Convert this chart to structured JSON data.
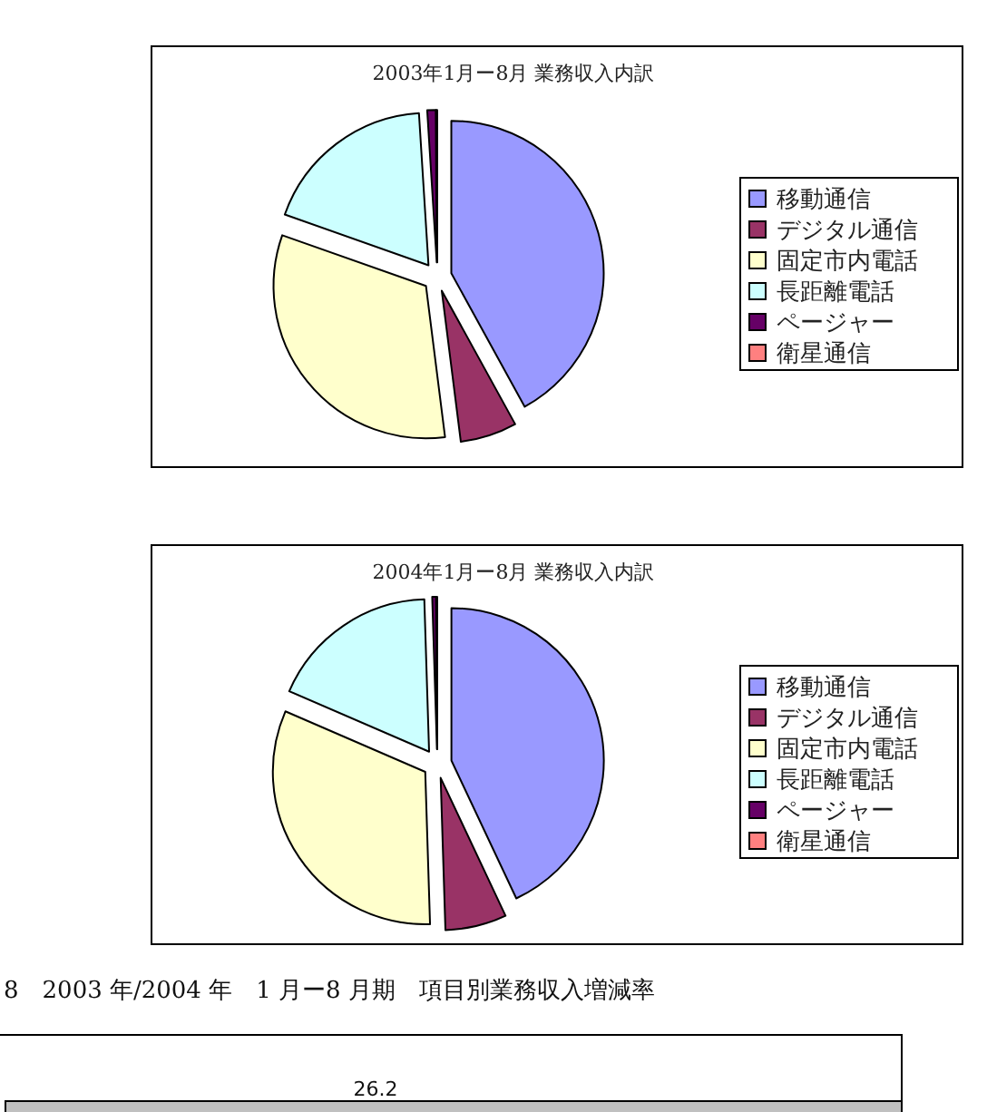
{
  "chart_data": [
    {
      "type": "pie",
      "title": "2003年1月ー8月 業務収入内訳",
      "categories": [
        "移動通信",
        "デジタル通信",
        "固定市内電話",
        "長距離電話",
        "ページャー",
        "衛星通信"
      ],
      "values": [
        42,
        6,
        32.4,
        18.6,
        0.9,
        0.1
      ],
      "colors": [
        "#9999ff",
        "#993366",
        "#ffffcc",
        "#ccffff",
        "#660066",
        "#ff8080"
      ],
      "legend": "right"
    },
    {
      "type": "pie",
      "title": "2004年1月ー8月 業務収入内訳",
      "categories": [
        "移動通信",
        "デジタル通信",
        "固定市内電話",
        "長距離電話",
        "ページャー",
        "衛星通信"
      ],
      "values": [
        43,
        6.5,
        32,
        18,
        0.4,
        0.1
      ],
      "colors": [
        "#9999ff",
        "#993366",
        "#ffffcc",
        "#ccffff",
        "#660066",
        "#ff8080"
      ],
      "legend": "right"
    },
    {
      "type": "other",
      "title": "8　2003 年/2004 年　1 月ー8 月期　項目別業務収入増減率",
      "annotations": [
        "26.2"
      ]
    }
  ]
}
